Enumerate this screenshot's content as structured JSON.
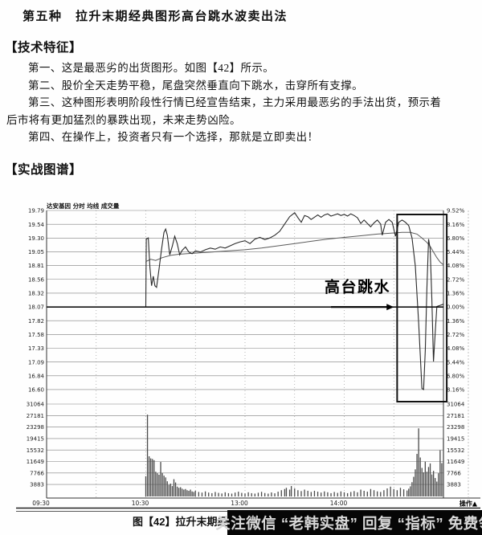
{
  "page": {
    "title": "第五种　拉升末期经典图形高台跳水波卖出法",
    "tech_heading": "【技术特征】",
    "tech_items": [
      "第一、这是最恶劣的出货图形。如图【42】所示。",
      "第二、股价全天走势平稳，尾盘突然垂直向下跳水，击穿所有支撑。",
      "第三、这种图形表明阶段性行情已经宣告结束，主力采用最恶劣的手法出货，预示着后市将有更加猛烈的暴跌出现，未来走势凶险。",
      "第四、在操作上，投资者只有一个选择，那就是立即卖出！"
    ],
    "chart_heading": "【实战图谱】",
    "caption_visible": "图【42】拉升末期经",
    "banner_text": "关注微信 “老韩实盘” 回复 “指标” 免费领"
  },
  "chart_data": {
    "type": "line",
    "title_bar": "达安基因 分时 均线 成交量",
    "annotation_label": "高台跳水",
    "corner_label": "操作▲",
    "prev_close": 18.07,
    "price_axis_labels": [
      "19.79",
      "19.54",
      "19.30",
      "19.05",
      "18.81",
      "18.56",
      "18.32",
      "18.07",
      "17.82",
      "17.58",
      "17.33",
      "17.09",
      "16.84",
      "16.60"
    ],
    "percent_axis_labels": [
      "9.52%",
      "8.16%",
      "6.80%",
      "5.44%",
      "4.08%",
      "2.72%",
      "1.36%",
      "0.00%",
      "1.36%",
      "2.72%",
      "4.08%",
      "5.44%",
      "6.80%",
      "8.16%"
    ],
    "volume_axis_labels": [
      "31064",
      "27181",
      "23298",
      "19415",
      "15532",
      "11649",
      "7766",
      "3883"
    ],
    "time_labels": [
      {
        "text": "09:30",
        "min": 0
      },
      {
        "text": "10:30",
        "min": 60
      },
      {
        "text": "13:00",
        "min": 120
      },
      {
        "text": "14:00",
        "min": 180
      }
    ],
    "time_grid_minutes": [
      30,
      60,
      90,
      120,
      150,
      180,
      210
    ],
    "price_range": [
      16.6,
      19.79
    ],
    "volume_max": 31064,
    "session_minutes": 240,
    "highlight_box": {
      "t0": 212,
      "t1": 242,
      "note": "tail-dive zone"
    },
    "arrow": {
      "t0": 172,
      "t1": 210,
      "price": 18.07
    },
    "annotation_pos": {
      "t": 188,
      "price": 18.42
    },
    "series": [
      {
        "name": "price",
        "points": [
          [
            60,
            18.07
          ],
          [
            60.3,
            19.28
          ],
          [
            61.5,
            19.3
          ],
          [
            62.5,
            18.78
          ],
          [
            63.5,
            18.45
          ],
          [
            64.5,
            18.62
          ],
          [
            65.5,
            18.45
          ],
          [
            66.5,
            18.42
          ],
          [
            68,
            18.75
          ],
          [
            69.5,
            19.1
          ],
          [
            71,
            19.4
          ],
          [
            72,
            19.46
          ],
          [
            73,
            19.35
          ],
          [
            74.5,
            19.0
          ],
          [
            76,
            19.15
          ],
          [
            77.5,
            19.33
          ],
          [
            79,
            19.2
          ],
          [
            80.5,
            19.0
          ],
          [
            82,
            19.08
          ],
          [
            84,
            19.14
          ],
          [
            86,
            19.05
          ],
          [
            88,
            19.02
          ],
          [
            90,
            19.07
          ],
          [
            93,
            19.05
          ],
          [
            96,
            19.09
          ],
          [
            99,
            19.12
          ],
          [
            102,
            19.1
          ],
          [
            105,
            19.14
          ],
          [
            108,
            19.12
          ],
          [
            111,
            19.16
          ],
          [
            114,
            19.2
          ],
          [
            117,
            19.23
          ],
          [
            120,
            19.25
          ],
          [
            123,
            19.2
          ],
          [
            126,
            19.28
          ],
          [
            129,
            19.31
          ],
          [
            132,
            19.27
          ],
          [
            135,
            19.3
          ],
          [
            138,
            19.35
          ],
          [
            141,
            19.42
          ],
          [
            144,
            19.55
          ],
          [
            147,
            19.68
          ],
          [
            150,
            19.75
          ],
          [
            152,
            19.66
          ],
          [
            154,
            19.58
          ],
          [
            156,
            19.7
          ],
          [
            158,
            19.68
          ],
          [
            160,
            19.63
          ],
          [
            162,
            19.67
          ],
          [
            164,
            19.71
          ],
          [
            166,
            19.67
          ],
          [
            168,
            19.71
          ],
          [
            170,
            19.73
          ],
          [
            172,
            19.69
          ],
          [
            174,
            19.71
          ],
          [
            176,
            19.73
          ],
          [
            178,
            19.7
          ],
          [
            180,
            19.72
          ],
          [
            182,
            19.69
          ],
          [
            184,
            19.73
          ],
          [
            186,
            19.7
          ],
          [
            188,
            19.66
          ],
          [
            190,
            19.56
          ],
          [
            192,
            19.62
          ],
          [
            194,
            19.56
          ],
          [
            196,
            19.5
          ],
          [
            198,
            19.57
          ],
          [
            200,
            19.62
          ],
          [
            202,
            19.55
          ],
          [
            203,
            19.35
          ],
          [
            205,
            19.58
          ],
          [
            207,
            19.63
          ],
          [
            209,
            19.58
          ],
          [
            211,
            19.33
          ],
          [
            213,
            19.58
          ],
          [
            215,
            19.62
          ],
          [
            217,
            19.58
          ],
          [
            219,
            19.52
          ],
          [
            221,
            19.3
          ],
          [
            223,
            18.8
          ],
          [
            225,
            17.8
          ],
          [
            226,
            17.2
          ],
          [
            227,
            16.62
          ],
          [
            228,
            16.6
          ],
          [
            229,
            17.3
          ],
          [
            230,
            18.4
          ],
          [
            231,
            19.28
          ],
          [
            232,
            19.1
          ],
          [
            233,
            18.2
          ],
          [
            234,
            17.1
          ],
          [
            235,
            17.6
          ],
          [
            236,
            18.08
          ],
          [
            238,
            18.1
          ],
          [
            240,
            18.12
          ]
        ]
      },
      {
        "name": "average",
        "points": [
          [
            60,
            18.88
          ],
          [
            63,
            18.92
          ],
          [
            66,
            18.9
          ],
          [
            70,
            18.95
          ],
          [
            75,
            18.99
          ],
          [
            80,
            19.01
          ],
          [
            85,
            19.02
          ],
          [
            90,
            19.03
          ],
          [
            100,
            19.05
          ],
          [
            110,
            19.07
          ],
          [
            120,
            19.09
          ],
          [
            130,
            19.12
          ],
          [
            140,
            19.16
          ],
          [
            150,
            19.2
          ],
          [
            160,
            19.24
          ],
          [
            170,
            19.28
          ],
          [
            180,
            19.31
          ],
          [
            190,
            19.34
          ],
          [
            200,
            19.37
          ],
          [
            210,
            19.39
          ],
          [
            215,
            19.4
          ],
          [
            220,
            19.4
          ],
          [
            224,
            19.37
          ],
          [
            227,
            19.3
          ],
          [
            230,
            19.22
          ],
          [
            232,
            19.15
          ],
          [
            234,
            19.05
          ],
          [
            236,
            18.95
          ],
          [
            238,
            18.87
          ],
          [
            240,
            18.82
          ]
        ]
      }
    ],
    "volume_bars": [
      [
        60,
        6800
      ],
      [
        61,
        27500
      ],
      [
        62,
        13500
      ],
      [
        63,
        12800
      ],
      [
        64,
        12600
      ],
      [
        65,
        12200
      ],
      [
        66,
        8300
      ],
      [
        67,
        7800
      ],
      [
        68,
        7300
      ],
      [
        69,
        11600
      ],
      [
        70,
        7900
      ],
      [
        71,
        7000
      ],
      [
        72,
        6400
      ],
      [
        73,
        5100
      ],
      [
        74,
        3900
      ],
      [
        75,
        4300
      ],
      [
        76,
        3500
      ],
      [
        77,
        5800
      ],
      [
        78,
        4700
      ],
      [
        79,
        3300
      ],
      [
        80,
        2900
      ],
      [
        81,
        3100
      ],
      [
        82,
        2600
      ],
      [
        83,
        2300
      ],
      [
        84,
        2500
      ],
      [
        85,
        2100
      ],
      [
        86,
        1900
      ],
      [
        87,
        2300
      ],
      [
        88,
        1700
      ],
      [
        89,
        1500
      ],
      [
        90,
        1900
      ],
      [
        92,
        1500
      ],
      [
        94,
        1300
      ],
      [
        96,
        1700
      ],
      [
        98,
        1300
      ],
      [
        100,
        1100
      ],
      [
        102,
        1500
      ],
      [
        104,
        1200
      ],
      [
        106,
        1000
      ],
      [
        108,
        1400
      ],
      [
        110,
        1100
      ],
      [
        112,
        950
      ],
      [
        114,
        1300
      ],
      [
        116,
        1600
      ],
      [
        118,
        1200
      ],
      [
        120,
        1000
      ],
      [
        122,
        1400
      ],
      [
        124,
        1100
      ],
      [
        126,
        950
      ],
      [
        128,
        1250
      ],
      [
        130,
        1550
      ],
      [
        132,
        1150
      ],
      [
        134,
        950
      ],
      [
        136,
        1350
      ],
      [
        138,
        1050
      ],
      [
        140,
        1600
      ],
      [
        142,
        2100
      ],
      [
        144,
        2500
      ],
      [
        145,
        2900
      ],
      [
        147,
        2300
      ],
      [
        148,
        3500
      ],
      [
        150,
        2700
      ],
      [
        152,
        2100
      ],
      [
        154,
        1800
      ],
      [
        156,
        2300
      ],
      [
        158,
        1900
      ],
      [
        160,
        1500
      ],
      [
        162,
        1900
      ],
      [
        164,
        1600
      ],
      [
        166,
        1300
      ],
      [
        168,
        1700
      ],
      [
        170,
        1400
      ],
      [
        172,
        1100
      ],
      [
        174,
        1500
      ],
      [
        176,
        1200
      ],
      [
        178,
        1700
      ],
      [
        180,
        1400
      ],
      [
        182,
        1100
      ],
      [
        184,
        1500
      ],
      [
        186,
        1800
      ],
      [
        188,
        1400
      ],
      [
        190,
        2300
      ],
      [
        192,
        1900
      ],
      [
        194,
        1600
      ],
      [
        196,
        2500
      ],
      [
        198,
        2100
      ],
      [
        200,
        1700
      ],
      [
        202,
        1500
      ],
      [
        204,
        2100
      ],
      [
        206,
        2700
      ],
      [
        208,
        3300
      ],
      [
        210,
        2500
      ],
      [
        212,
        2100
      ],
      [
        214,
        2900
      ],
      [
        216,
        2400
      ],
      [
        218,
        2000
      ],
      [
        219,
        2600
      ],
      [
        220,
        3400
      ],
      [
        221,
        4800
      ],
      [
        222,
        6600
      ],
      [
        223,
        9100
      ],
      [
        224,
        14300
      ],
      [
        225,
        22900
      ],
      [
        226,
        13100
      ],
      [
        227,
        9600
      ],
      [
        228,
        8100
      ],
      [
        229,
        11700
      ],
      [
        230,
        8300
      ],
      [
        231,
        9900
      ],
      [
        232,
        11100
      ],
      [
        233,
        7400
      ],
      [
        234,
        8600
      ],
      [
        235,
        6200
      ],
      [
        236,
        5000
      ],
      [
        237,
        7800
      ],
      [
        238,
        15500
      ],
      [
        239,
        11200
      ],
      [
        240,
        19400
      ]
    ]
  }
}
